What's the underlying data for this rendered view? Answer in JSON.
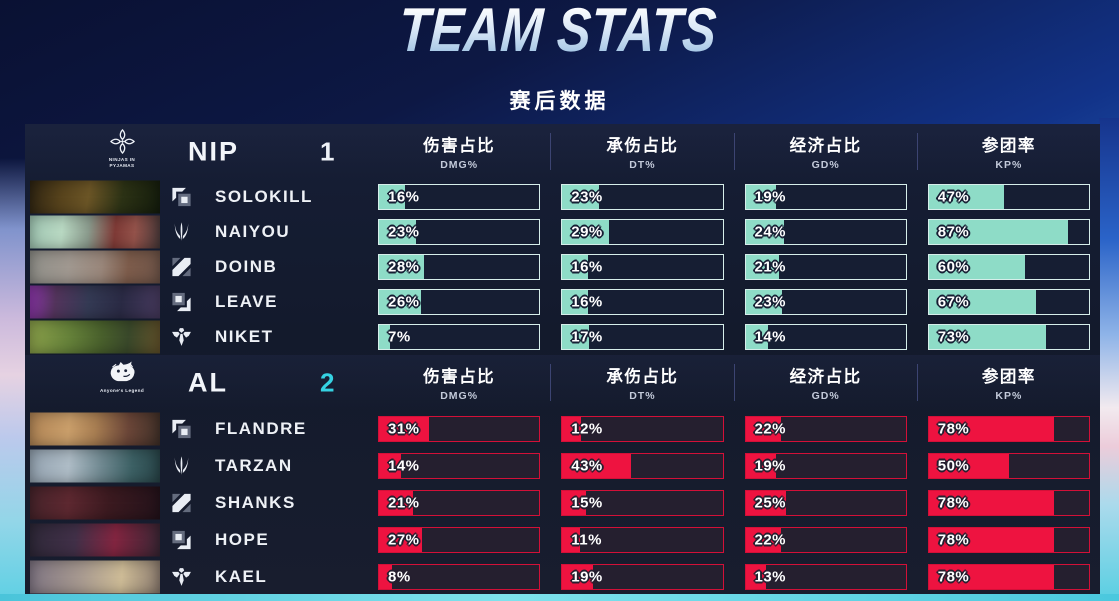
{
  "header": {
    "title": "TEAM STATS",
    "subtitle": "赛后数据"
  },
  "columns": [
    {
      "zh": "伤害占比",
      "en": "DMG%"
    },
    {
      "zh": "承伤占比",
      "en": "DT%"
    },
    {
      "zh": "经济占比",
      "en": "GD%"
    },
    {
      "zh": "参团率",
      "en": "KP%"
    }
  ],
  "teams": [
    {
      "name": "NIP",
      "score": "1",
      "logo_icon": "shuriken-logo",
      "logo_caption": "NINJAS IN PYJAMAS",
      "colors": {
        "fill": "#8edcc7",
        "border": "#d6eeea",
        "bg": "#161e33",
        "score": "#eef2f8"
      },
      "players": [
        {
          "name": "SOLOKILL",
          "role": "top",
          "stats": [
            16,
            23,
            19,
            47
          ],
          "portrait": "linear-gradient(100deg,#2e2412 0%,#57431c 25%,#6b5526 45%,#2c3215 70%,#141c0c 100%)"
        },
        {
          "name": "NAIYOU",
          "role": "jungle",
          "stats": [
            23,
            29,
            24,
            87
          ],
          "portrait": "linear-gradient(95deg,#9fc5b2 0%,#b8d8c2 25%,#8a9a8c 45%,#7e3a36 65%,#93524a 80%,#4a3a3a 100%)"
        },
        {
          "name": "DOINB",
          "role": "mid",
          "stats": [
            28,
            16,
            21,
            60
          ],
          "portrait": "linear-gradient(95deg,#8f8f89 0%,#a09890 30%,#99867a 55%,#7d5c4b 75%,#6e5448 100%)"
        },
        {
          "name": "LEAVE",
          "role": "bot",
          "stats": [
            26,
            16,
            23,
            67
          ],
          "portrait": "linear-gradient(95deg,#8a35a8 0%,#53345c 20%,#343a54 45%,#2a2a44 70%,#473a5e 100%)"
        },
        {
          "name": "NIKET",
          "role": "support",
          "stats": [
            7,
            17,
            14,
            73
          ],
          "portrait": "linear-gradient(95deg,#8aa04a 0%,#66823a 30%,#49602c 55%,#39482a 75%,#62512a 100%)"
        }
      ]
    },
    {
      "name": "AL",
      "score": "2",
      "logo_icon": "wolf-logo",
      "logo_caption": "Anyone's Legend",
      "colors": {
        "fill": "#ee1340",
        "border": "#d31038",
        "bg": "#251f2f",
        "score": "#35d2e2"
      },
      "players": [
        {
          "name": "FLANDRE",
          "role": "top",
          "stats": [
            31,
            12,
            22,
            78
          ],
          "portrait": "linear-gradient(95deg,#b08455 0%,#c99e6a 30%,#a87e52 50%,#6b4638 75%,#403028 100%)"
        },
        {
          "name": "TARZAN",
          "role": "jungle",
          "stats": [
            14,
            43,
            19,
            50
          ],
          "portrait": "linear-gradient(95deg,#93a2b0 0%,#aebcc6 30%,#6f8890 55%,#3c6064 78%,#284448 100%)"
        },
        {
          "name": "SHANKS",
          "role": "mid",
          "stats": [
            21,
            15,
            25,
            78
          ],
          "portrait": "linear-gradient(95deg,#45232a 0%,#5d2830 30%,#3c1a20 60%,#23121a 100%)"
        },
        {
          "name": "HOPE",
          "role": "bot",
          "stats": [
            27,
            11,
            22,
            78
          ],
          "portrait": "linear-gradient(95deg,#2e2838 0%,#413048 35%,#822540 65%,#392634 100%)"
        },
        {
          "name": "KAEL",
          "role": "support",
          "stats": [
            8,
            19,
            13,
            78
          ],
          "portrait": "linear-gradient(95deg,#7e7482 0%,#a89a90 40%,#cdbb96 70%,#8a7a6e 100%)"
        }
      ]
    }
  ],
  "chart_data": [
    {
      "type": "bar",
      "orientation": "horizontal",
      "title": "NIP",
      "categories": [
        "SOLOKILL",
        "NAIYOU",
        "DOINB",
        "LEAVE",
        "NIKET"
      ],
      "series": [
        {
          "name": "DMG%",
          "values": [
            16,
            23,
            28,
            26,
            7
          ]
        },
        {
          "name": "DT%",
          "values": [
            23,
            29,
            16,
            16,
            17
          ]
        },
        {
          "name": "GD%",
          "values": [
            19,
            24,
            21,
            23,
            14
          ]
        },
        {
          "name": "KP%",
          "values": [
            47,
            87,
            60,
            67,
            73
          ]
        }
      ],
      "xlim": [
        0,
        100
      ],
      "bar_color": "#8edcc7",
      "grid": false,
      "legend_position": "column-headers"
    },
    {
      "type": "bar",
      "orientation": "horizontal",
      "title": "AL",
      "categories": [
        "FLANDRE",
        "TARZAN",
        "SHANKS",
        "HOPE",
        "KAEL"
      ],
      "series": [
        {
          "name": "DMG%",
          "values": [
            31,
            14,
            21,
            27,
            8
          ]
        },
        {
          "name": "DT%",
          "values": [
            12,
            43,
            15,
            11,
            19
          ]
        },
        {
          "name": "GD%",
          "values": [
            22,
            19,
            25,
            22,
            13
          ]
        },
        {
          "name": "KP%",
          "values": [
            78,
            50,
            78,
            78,
            78
          ]
        }
      ],
      "xlim": [
        0,
        100
      ],
      "bar_color": "#ee1340",
      "grid": false,
      "legend_position": "column-headers"
    }
  ]
}
